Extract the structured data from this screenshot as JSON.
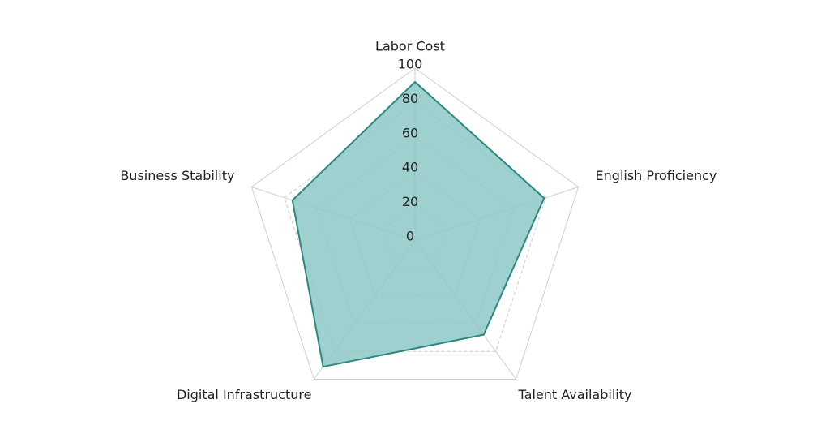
{
  "chart_data": {
    "type": "radar",
    "categories": [
      "Labor Cost",
      "English Proficiency",
      "Talent Availability",
      "Digital Infrastructure",
      "Business Stability"
    ],
    "values": [
      92,
      79,
      68,
      91,
      75
    ],
    "color": "#2a8a80",
    "fill": "#8cc8c6",
    "rlim": [
      0,
      100
    ],
    "rticks": [
      0,
      20,
      40,
      60,
      80,
      100
    ],
    "grid": true
  }
}
